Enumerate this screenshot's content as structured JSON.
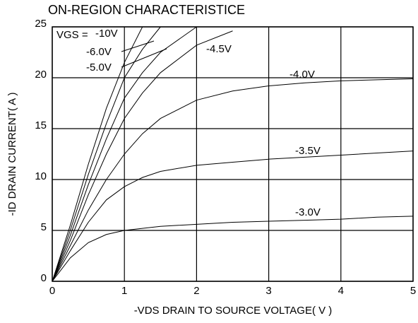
{
  "chart_data": {
    "type": "line",
    "title": "ON-REGION CHARACTERISTICE",
    "x_label": "-VDS DRAIN TO SOURCE VOLTAGE( V )",
    "y_label": "-ID DRAIN CURRENT( A )",
    "annotation": "VGS =",
    "x": [
      0,
      0.25,
      0.5,
      0.75,
      1,
      1.25,
      1.5,
      2,
      2.5,
      3,
      3.5,
      4,
      4.5,
      5
    ],
    "series": [
      {
        "name": "-10V",
        "color": "#000000",
        "values": [
          0,
          5.5,
          11.5,
          17,
          21.5,
          25,
          null,
          null,
          null,
          null,
          null,
          null,
          null,
          null
        ]
      },
      {
        "name": "-6.0V",
        "color": "#000000",
        "values": [
          0,
          5,
          10.5,
          15.5,
          20,
          22.8,
          25,
          null,
          null,
          null,
          null,
          null,
          null,
          null
        ]
      },
      {
        "name": "-5.0V",
        "color": "#000000",
        "values": [
          0,
          4.5,
          9.5,
          14,
          18,
          20.5,
          22.5,
          25,
          null,
          null,
          null,
          null,
          null,
          null
        ]
      },
      {
        "name": "-4.5V",
        "color": "#000000",
        "values": [
          0,
          4,
          8.5,
          12.5,
          16,
          18.5,
          20.5,
          23.2,
          24.6,
          null,
          null,
          null,
          null,
          null
        ]
      },
      {
        "name": "-4.0V",
        "color": "#000000",
        "values": [
          0,
          3.5,
          7,
          10,
          12.5,
          14.5,
          16,
          17.8,
          18.7,
          19.2,
          19.5,
          19.7,
          19.8,
          19.9
        ]
      },
      {
        "name": "-3.5V",
        "color": "#000000",
        "values": [
          0,
          3,
          5.8,
          8,
          9.3,
          10.2,
          10.8,
          11.4,
          11.7,
          12.0,
          12.2,
          12.4,
          12.6,
          12.8
        ]
      },
      {
        "name": "-3.0V",
        "color": "#000000",
        "values": [
          0,
          2.3,
          3.8,
          4.6,
          5.0,
          5.2,
          5.4,
          5.6,
          5.8,
          5.9,
          6.0,
          6.1,
          6.3,
          6.4
        ]
      }
    ],
    "xlim": [
      0,
      5
    ],
    "xticks": [
      0,
      1,
      2,
      3,
      4,
      5
    ],
    "ylim": [
      0,
      25
    ],
    "yticks": [
      0,
      5,
      10,
      15,
      20,
      25
    ],
    "grid": true
  }
}
